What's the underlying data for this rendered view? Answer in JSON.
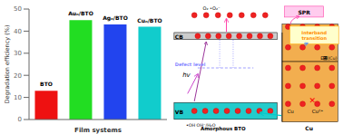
{
  "chart_data": {
    "type": "bar",
    "categories": [
      "BTO",
      "Auₙ/BTO",
      "Agₙ/BTO",
      "Cuₙ/BTO"
    ],
    "values": [
      13,
      45,
      43,
      42
    ],
    "colors": [
      "#ee1111",
      "#22dd22",
      "#2244ee",
      "#11cccc"
    ],
    "ylabel": "Degradation efficiency (%)",
    "xlabel": "Film systems",
    "ylim": [
      0,
      50
    ],
    "yticks": [
      0,
      10,
      20,
      30,
      40,
      50
    ],
    "tick_labels": "y",
    "annotations": [
      "CB",
      "VB",
      "Defect level",
      "hv",
      "O₂  •O₂⁻",
      "•OH  OH⁻/H₂O",
      "SPR",
      "Interband\ntransition",
      "E₟(Cu)",
      "✕",
      "Cu",
      "Cu²⁺",
      "Amorphous BTO",
      "Cu"
    ]
  }
}
